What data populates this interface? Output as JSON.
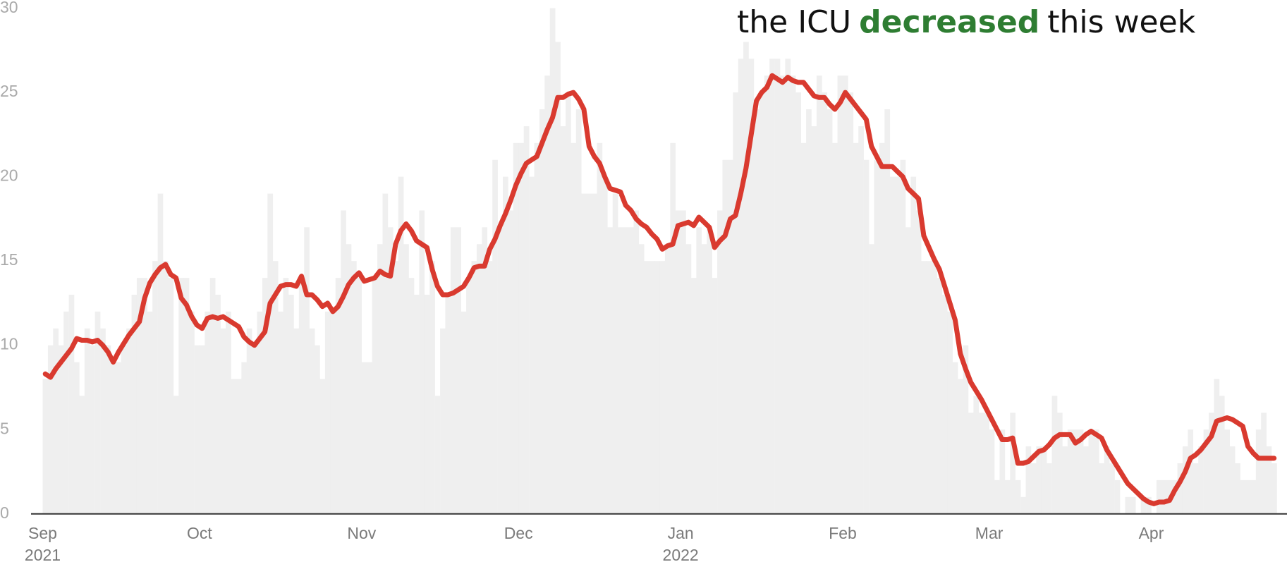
{
  "chart_data": {
    "type": "combo",
    "title": {
      "before": "the ICU",
      "highlight": "decreased",
      "after": "this week"
    },
    "categories": [
      "Sep\n2021",
      null,
      null,
      null,
      null,
      null,
      null,
      null,
      null,
      null,
      null,
      null,
      null,
      null,
      null,
      null,
      null,
      null,
      null,
      null,
      null,
      null,
      null,
      null,
      null,
      null,
      null,
      null,
      null,
      null,
      "Oct",
      null,
      null,
      null,
      null,
      null,
      null,
      null,
      null,
      null,
      null,
      null,
      null,
      null,
      null,
      null,
      null,
      null,
      null,
      null,
      null,
      null,
      null,
      null,
      null,
      null,
      null,
      null,
      null,
      null,
      null,
      "Nov",
      null,
      null,
      null,
      null,
      null,
      null,
      null,
      null,
      null,
      null,
      null,
      null,
      null,
      null,
      null,
      null,
      null,
      null,
      null,
      null,
      null,
      null,
      null,
      null,
      null,
      null,
      null,
      null,
      null,
      "Dec",
      null,
      null,
      null,
      null,
      null,
      null,
      null,
      null,
      null,
      null,
      null,
      null,
      null,
      null,
      null,
      null,
      null,
      null,
      null,
      null,
      null,
      null,
      null,
      null,
      null,
      null,
      null,
      null,
      null,
      null,
      "Jan\n2022",
      null,
      null,
      null,
      null,
      null,
      null,
      null,
      null,
      null,
      null,
      null,
      null,
      null,
      null,
      null,
      null,
      null,
      null,
      null,
      null,
      null,
      null,
      null,
      null,
      null,
      null,
      null,
      null,
      null,
      null,
      "Feb",
      null,
      null,
      null,
      null,
      null,
      null,
      null,
      null,
      null,
      null,
      null,
      null,
      null,
      null,
      null,
      null,
      null,
      null,
      null,
      null,
      null,
      null,
      null,
      null,
      null,
      null,
      null,
      "Mar",
      null,
      null,
      null,
      null,
      null,
      null,
      null,
      null,
      null,
      null,
      null,
      null,
      null,
      null,
      null,
      null,
      null,
      null,
      null,
      null,
      null,
      null,
      null,
      null,
      null,
      null,
      null,
      null,
      null,
      null,
      "Apr",
      null,
      null,
      null,
      null,
      null,
      null,
      null,
      null,
      null,
      null,
      null,
      null,
      null,
      null,
      null,
      null,
      null,
      null,
      null,
      null,
      null,
      null,
      null
    ],
    "series": [
      {
        "type": "bar",
        "color": "#efefef",
        "values": [
          8,
          10,
          11,
          10,
          12,
          13,
          9,
          7,
          11,
          10,
          12,
          11,
          10,
          9,
          9,
          10,
          11,
          13,
          14,
          14,
          12,
          15,
          19,
          15,
          14,
          7,
          14,
          14,
          12,
          10,
          10,
          12,
          14,
          13,
          11,
          12,
          8,
          8,
          9,
          11,
          10,
          12,
          14,
          19,
          15,
          12,
          14,
          13,
          11,
          14,
          17,
          11,
          10,
          8,
          12,
          12,
          14,
          18,
          16,
          15,
          14,
          9,
          9,
          14,
          16,
          19,
          17,
          15,
          20,
          16,
          14,
          13,
          18,
          13,
          15,
          7,
          11,
          13,
          17,
          17,
          12,
          14,
          15,
          16,
          17,
          15,
          21,
          17,
          20,
          18,
          22,
          22,
          23,
          20,
          22,
          24,
          26,
          30,
          28,
          23,
          25,
          22,
          24,
          19,
          19,
          19,
          22,
          20,
          17,
          19,
          17,
          17,
          17,
          18,
          16,
          15,
          15,
          15,
          15,
          16,
          22,
          18,
          18,
          16,
          14,
          17,
          16,
          17,
          14,
          18,
          21,
          21,
          25,
          27,
          28,
          27,
          24,
          25,
          26,
          27,
          27,
          26,
          27,
          26,
          25,
          22,
          24,
          23,
          26,
          25,
          24,
          22,
          26,
          26,
          25,
          22,
          23,
          21,
          16,
          21,
          22,
          24,
          20,
          20,
          21,
          17,
          20,
          18,
          15,
          15,
          15,
          14,
          13,
          12,
          9,
          8,
          10,
          6,
          7,
          6,
          6,
          5,
          2,
          5,
          2,
          6,
          2,
          1,
          4,
          3,
          4,
          4,
          3,
          7,
          6,
          4,
          5,
          5,
          5,
          4,
          5,
          5,
          3,
          4,
          3,
          2,
          0,
          1,
          1,
          0,
          1,
          1,
          0,
          2,
          2,
          2,
          2,
          3,
          4,
          5,
          3,
          4,
          5,
          6,
          8,
          7,
          5,
          4,
          3,
          2,
          2,
          2,
          5,
          6,
          4,
          3
        ]
      },
      {
        "type": "line",
        "color": "#d93a2f",
        "values": [
          8.3,
          8.1,
          8.6,
          9.0,
          9.4,
          9.8,
          10.4,
          10.3,
          10.3,
          10.2,
          10.3,
          10.0,
          9.6,
          9.0,
          9.6,
          10.1,
          10.6,
          11.0,
          11.4,
          12.8,
          13.7,
          14.2,
          14.6,
          14.8,
          14.2,
          14.0,
          12.8,
          12.4,
          11.7,
          11.2,
          11.0,
          11.6,
          11.7,
          11.6,
          11.7,
          11.5,
          11.3,
          11.1,
          10.5,
          10.2,
          10.0,
          10.4,
          10.8,
          12.5,
          13.0,
          13.5,
          13.6,
          13.6,
          13.5,
          14.1,
          13.0,
          13.0,
          12.7,
          12.3,
          12.5,
          12.0,
          12.3,
          12.9,
          13.6,
          14.0,
          14.3,
          13.8,
          13.9,
          14.0,
          14.4,
          14.2,
          14.1,
          16.0,
          16.8,
          17.2,
          16.8,
          16.2,
          16.0,
          15.8,
          14.5,
          13.5,
          13.0,
          13.0,
          13.1,
          13.3,
          13.5,
          14.0,
          14.6,
          14.7,
          14.7,
          15.7,
          16.3,
          17.1,
          17.8,
          18.6,
          19.5,
          20.2,
          20.8,
          21.0,
          21.2,
          22.0,
          22.8,
          23.5,
          24.7,
          24.7,
          24.9,
          25.0,
          24.6,
          24.0,
          21.8,
          21.2,
          20.8,
          20.0,
          19.3,
          19.2,
          19.1,
          18.3,
          18.0,
          17.5,
          17.2,
          17.0,
          16.6,
          16.3,
          15.7,
          15.9,
          16.0,
          17.1,
          17.2,
          17.3,
          17.1,
          17.6,
          17.3,
          17.0,
          15.8,
          16.2,
          16.5,
          17.5,
          17.7,
          19.0,
          20.5,
          22.5,
          24.5,
          25.0,
          25.3,
          26.0,
          25.8,
          25.6,
          25.9,
          25.7,
          25.6,
          25.6,
          25.2,
          24.8,
          24.7,
          24.7,
          24.3,
          24.0,
          24.4,
          25.0,
          24.6,
          24.2,
          23.8,
          23.4,
          21.8,
          21.2,
          20.6,
          20.6,
          20.6,
          20.3,
          20.0,
          19.3,
          19.0,
          18.7,
          16.5,
          15.8,
          15.1,
          14.5,
          13.5,
          12.5,
          11.5,
          9.5,
          8.6,
          7.8,
          7.3,
          6.8,
          6.2,
          5.6,
          5.0,
          4.4,
          4.4,
          4.5,
          3.0,
          3.0,
          3.1,
          3.4,
          3.7,
          3.8,
          4.1,
          4.5,
          4.7,
          4.7,
          4.7,
          4.2,
          4.4,
          4.7,
          4.9,
          4.7,
          4.5,
          3.8,
          3.3,
          2.8,
          2.3,
          1.8,
          1.5,
          1.2,
          0.9,
          0.7,
          0.6,
          0.7,
          0.7,
          0.8,
          1.4,
          1.9,
          2.5,
          3.3,
          3.5,
          3.8,
          4.2,
          4.6,
          5.5,
          5.6,
          5.7,
          5.6,
          5.4,
          5.2,
          4.0,
          3.6,
          3.3,
          3.3,
          3.3,
          3.3
        ]
      }
    ],
    "ylim": [
      0,
      30
    ],
    "yticks": [
      0,
      5,
      10,
      15,
      20,
      25,
      30
    ]
  }
}
